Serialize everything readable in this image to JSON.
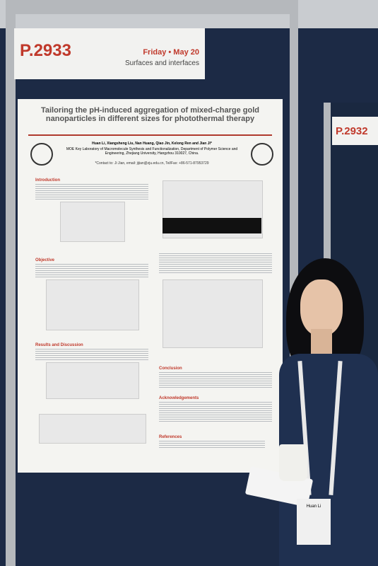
{
  "left_sign": {
    "code": "P.2933",
    "day": "Friday • May 20",
    "session": "Surfaces and interfaces"
  },
  "right_sign": {
    "code": "P.2932"
  },
  "poster": {
    "title": "Tailoring the pH-induced aggregation of mixed-charge gold nanoparticles in different sizes for photothermal therapy",
    "authors": "Huan Li, Xiangsheng Liu, Nan Huang, Qiao Jin, Kelong Ren and Jian Ji*",
    "affiliation": "MOE Key Laboratory of Macromolecule Synthesis and Functionalization, Department of Polymer Science and Engineering, Zhejiang University, Hangzhou 310027, China.",
    "contact": "*Contact to: Ji Jian, email: jijian@zju.edu.cn, Tel/Fax: +86-571-87953729",
    "sections": [
      "Introduction",
      "Objective",
      "Results and Discussion",
      "Conclusion",
      "Acknowledgements",
      "References"
    ]
  },
  "badge": {
    "name": "Huan Li"
  }
}
